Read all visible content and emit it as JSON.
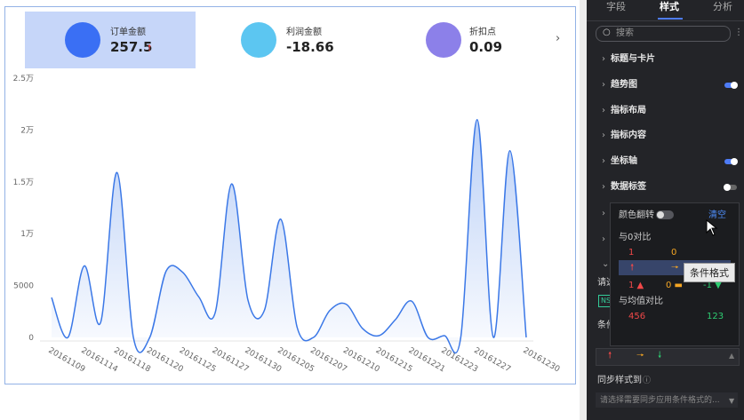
{
  "kpis": [
    {
      "label": "订单金额",
      "value": "257.5"
    },
    {
      "label": "利润金额",
      "value": "-18.66"
    },
    {
      "label": "折扣点",
      "value": "0.09"
    }
  ],
  "chart_data": {
    "type": "area",
    "color": "#3b78e7",
    "grid": false,
    "categories": [
      "20161109",
      null,
      "20161114",
      null,
      "20161118",
      null,
      "20161120",
      null,
      "20161125",
      null,
      "20161127",
      null,
      "20161130",
      null,
      "20161205",
      null,
      "20161207",
      null,
      "20161210",
      null,
      "20161215",
      null,
      "20161221",
      null,
      "20161223",
      null,
      "20161227",
      null,
      null,
      "20161230"
    ],
    "values": [
      3850,
      0,
      6900,
      1450,
      15900,
      0,
      0,
      6400,
      6300,
      3900,
      2400,
      14800,
      3600,
      2600,
      11400,
      1000,
      0,
      2600,
      3200,
      860,
      170,
      1700,
      3500,
      0,
      170,
      0,
      21000,
      0,
      18000,
      0
    ],
    "ylim": [
      0,
      25000
    ],
    "yticks": [
      0,
      5000,
      {
        "value": 10000,
        "label": "1万"
      },
      {
        "value": 15000,
        "label": "1.5万"
      },
      {
        "value": 20000,
        "label": "2万"
      },
      {
        "value": 25000,
        "label": "2.5万"
      }
    ]
  },
  "panel": {
    "tabs": [
      "字段",
      "样式",
      "分析"
    ],
    "active_tab": 1,
    "search": "搜索",
    "sections": [
      {
        "label": "标题与卡片"
      },
      {
        "label": "趋势图",
        "toggle": true
      },
      {
        "label": "指标布局"
      },
      {
        "label": "指标内容"
      },
      {
        "label": "坐标轴",
        "toggle": true
      },
      {
        "label": "数据标签",
        "toggle": false
      }
    ],
    "behind": [
      "请选",
      "NS",
      "条件"
    ],
    "sync": "同步样式到",
    "sync_placeholder": "请选择需要同步应用条件格式的..."
  },
  "popup": {
    "title": "颜色翻转",
    "clear": "清空",
    "tooltip": "条件格式",
    "compare_zero": "与0对比",
    "zero_row": [
      "1",
      "0"
    ],
    "icon_row": [
      "1",
      "0",
      "-1"
    ],
    "compare_mean": "与均值对比",
    "mean_row": [
      "456",
      "123"
    ]
  }
}
